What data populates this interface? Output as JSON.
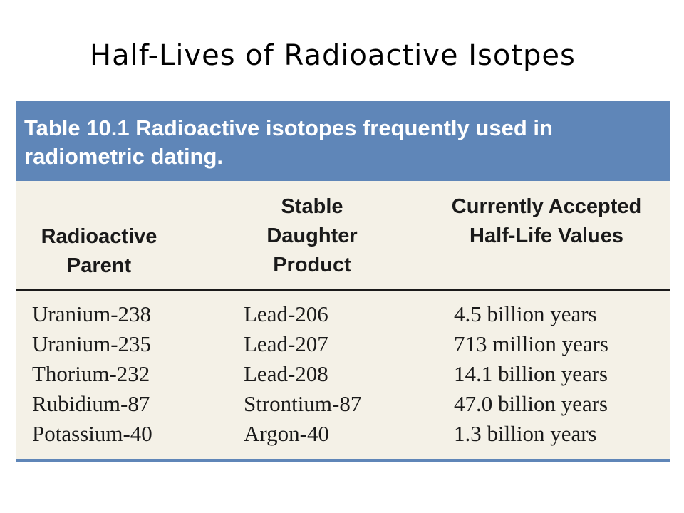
{
  "slide": {
    "title": "Half-Lives of Radioactive Isotpes"
  },
  "table": {
    "caption": "Table 10.1  Radioactive isotopes frequently used in radiometric dating.",
    "columns": [
      "Radioactive Parent",
      "Stable Daughter Product",
      "Currently Accepted Half-Life Values"
    ],
    "rows": [
      {
        "parent": "Uranium-238",
        "daughter": "Lead-206",
        "half_life": "4.5 billion years"
      },
      {
        "parent": "Uranium-235",
        "daughter": "Lead-207",
        "half_life": "713 million years"
      },
      {
        "parent": "Thorium-232",
        "daughter": "Lead-208",
        "half_life": "14.1 billion years"
      },
      {
        "parent": "Rubidium-87",
        "daughter": "Strontium-87",
        "half_life": "47.0 billion years"
      },
      {
        "parent": "Potassium-40",
        "daughter": "Argon-40",
        "half_life": "1.3 billion years"
      }
    ],
    "colors": {
      "caption_bar": "#5f86b8",
      "table_background": "#f4f1e7"
    }
  }
}
